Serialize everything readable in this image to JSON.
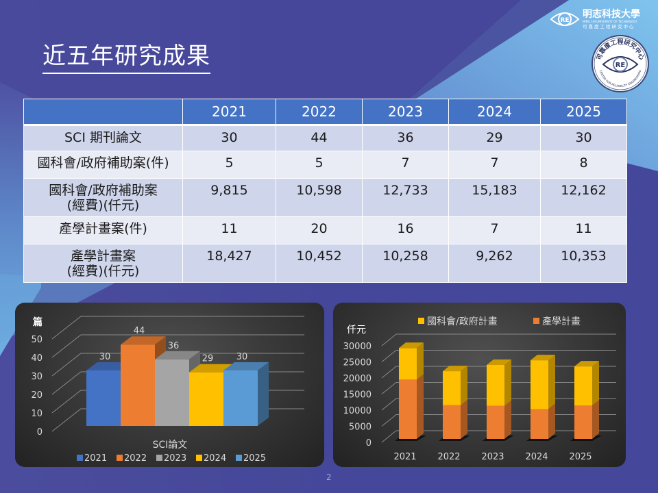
{
  "slide": {
    "title": "近五年研究成果",
    "page_number": "2"
  },
  "logos": {
    "university_name": "明志科技大學",
    "university_name_en": "MING CHI UNIVERSITY OF TECHNOLOGY",
    "center_name": "可靠度工程研究中心",
    "seal_top_text": "可靠度工程研究中心",
    "seal_bottom_text": "CENTER FOR RELIABILITY ENGINEERING",
    "seal_mark": "RE"
  },
  "table": {
    "headers": [
      "",
      "2021",
      "2022",
      "2023",
      "2024",
      "2025"
    ],
    "rows": [
      {
        "label": "SCI 期刊論文",
        "label2": "",
        "values": [
          "30",
          "44",
          "36",
          "29",
          "30"
        ]
      },
      {
        "label": "國科會/政府補助案(件)",
        "label2": "",
        "values": [
          "5",
          "5",
          "7",
          "7",
          "8"
        ]
      },
      {
        "label": "國科會/政府補助案",
        "label2": "(經費)(仟元)",
        "values": [
          "9,815",
          "10,598",
          "12,733",
          "15,183",
          "12,162"
        ]
      },
      {
        "label": "產學計畫案(件)",
        "label2": "",
        "values": [
          "11",
          "20",
          "16",
          "7",
          "11"
        ]
      },
      {
        "label": "產學計畫案",
        "label2": "(經費)(仟元)",
        "values": [
          "18,427",
          "10,452",
          "10,258",
          "9,262",
          "10,353"
        ]
      }
    ]
  },
  "chart_data": [
    {
      "type": "bar",
      "title": "",
      "xlabel": "SCI論文",
      "ylabel": "篇",
      "categories": [
        "SCI論文"
      ],
      "series": [
        {
          "name": "2021",
          "values": [
            30
          ],
          "color": "#4472c4"
        },
        {
          "name": "2022",
          "values": [
            44
          ],
          "color": "#ed7d31"
        },
        {
          "name": "2023",
          "values": [
            36
          ],
          "color": "#a5a5a5"
        },
        {
          "name": "2024",
          "values": [
            29
          ],
          "color": "#ffc000"
        },
        {
          "name": "2025",
          "values": [
            30
          ],
          "color": "#5b9bd5"
        }
      ],
      "data_labels": [
        "30",
        "44",
        "36",
        "29",
        "30"
      ],
      "ylim": [
        0,
        50
      ],
      "yticks": [
        "0",
        "10",
        "20",
        "30",
        "40",
        "50"
      ],
      "grid": true,
      "legend": "bottom"
    },
    {
      "type": "bar",
      "stacked": true,
      "title": "",
      "xlabel": "",
      "ylabel": "仟元",
      "categories": [
        "2021",
        "2022",
        "2023",
        "2024",
        "2025"
      ],
      "series": [
        {
          "name": "產學計畫",
          "values": [
            18427,
            10452,
            10258,
            9262,
            10353
          ],
          "color": "#ed7d31"
        },
        {
          "name": "國科會/政府計畫",
          "values": [
            9815,
            10598,
            12733,
            15183,
            12162
          ],
          "color": "#ffc000"
        }
      ],
      "legend_order": [
        "國科會/政府計畫",
        "產學計畫"
      ],
      "ylim": [
        0,
        30000
      ],
      "yticks": [
        "0",
        "5000",
        "10000",
        "15000",
        "20000",
        "25000",
        "30000"
      ],
      "grid": true,
      "legend": "top"
    }
  ]
}
